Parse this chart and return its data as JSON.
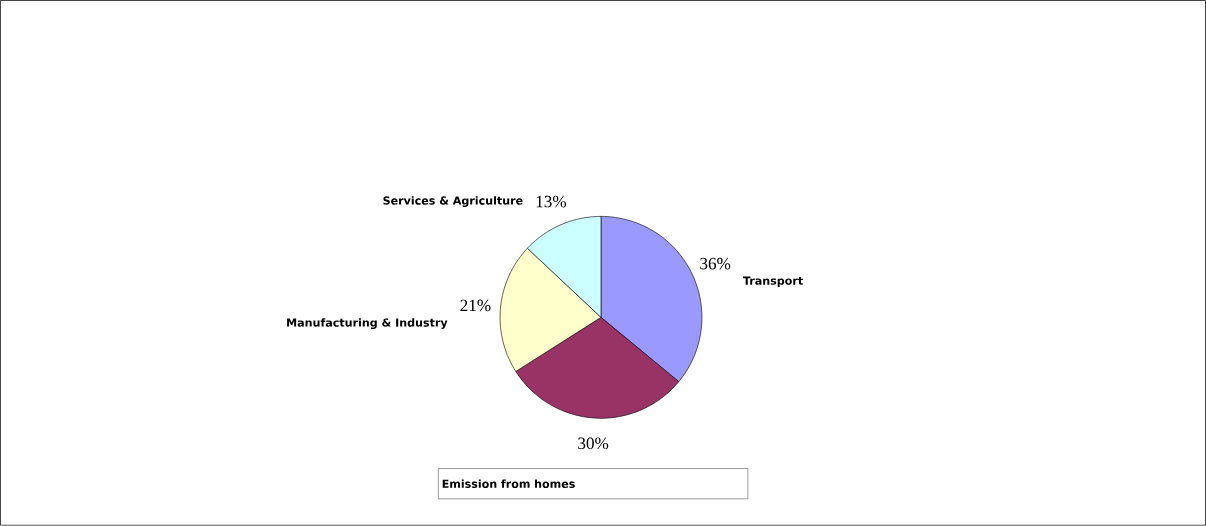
{
  "chart_data": {
    "type": "pie",
    "categories": [
      "Transport",
      "Emission from homes",
      "Manufacturing & Industry",
      "Services & Agriculture"
    ],
    "values": [
      36,
      30,
      21,
      13
    ],
    "colors": [
      "#9999ff",
      "#993366",
      "#ffffcc",
      "#ccffff"
    ],
    "value_labels": [
      "36%",
      "30%",
      "21%",
      "13%"
    ]
  }
}
